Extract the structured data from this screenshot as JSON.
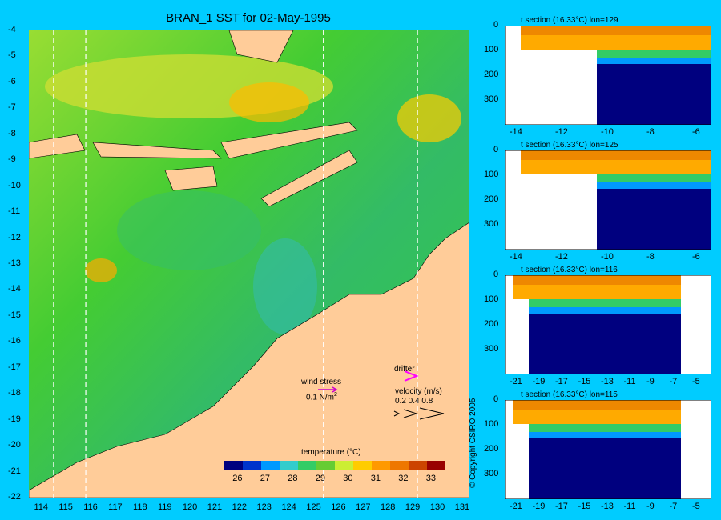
{
  "title": "BRAN_1 SST for 02-May-1995",
  "map": {
    "lat_ticks": [
      "-4",
      "-5",
      "-6",
      "-7",
      "-8",
      "-9",
      "-10",
      "-11",
      "-12",
      "-13",
      "-14",
      "-15",
      "-16",
      "-17",
      "-18",
      "-19",
      "-20",
      "-21",
      "-22"
    ],
    "lon_ticks": [
      "114",
      "115",
      "116",
      "117",
      "118",
      "119",
      "120",
      "121",
      "122",
      "123",
      "124",
      "125",
      "126",
      "127",
      "128",
      "129",
      "130",
      "131"
    ],
    "section_lons": [
      114.5,
      115.8,
      125.4,
      129.2
    ],
    "wind_label": "wind stress",
    "wind_scale": "0.1 N/m",
    "wind_exp": "2",
    "drifter_label": "drifter",
    "velocity_label": "velocity (m/s)",
    "velocity_values": "0.2 0.4 0.8"
  },
  "colorbar": {
    "label": "temperature (°C)",
    "ticks": [
      "26",
      "27",
      "28",
      "29",
      "30",
      "31",
      "32",
      "33"
    ],
    "range": [
      25.5,
      33.5
    ],
    "colors": [
      "#00007f",
      "#0033cc",
      "#0099ff",
      "#33cccc",
      "#33cc66",
      "#66cc33",
      "#ccee33",
      "#ffcc00",
      "#ff9900",
      "#ee7700",
      "#cc4400",
      "#990000"
    ]
  },
  "sections": [
    {
      "title": "t section (16.33°C) lon=129",
      "depth_ticks": [
        "0",
        "100",
        "200",
        "300"
      ],
      "x_ticks": [
        "-14",
        "-12",
        "-10",
        "-8",
        "-6"
      ]
    },
    {
      "title": "t section (16.33°C) lon=125",
      "depth_ticks": [
        "0",
        "100",
        "200",
        "300"
      ],
      "x_ticks": [
        "-14",
        "-12",
        "-10",
        "-8",
        "-6"
      ]
    },
    {
      "title": "t section (16.33°C) lon=116",
      "depth_ticks": [
        "0",
        "100",
        "200",
        "300"
      ],
      "x_ticks": [
        "-21",
        "-19",
        "-17",
        "-15",
        "-13",
        "-11",
        "-9",
        "-7",
        "-5"
      ]
    },
    {
      "title": "t section (16.33°C) lon=115",
      "depth_ticks": [
        "0",
        "100",
        "200",
        "300"
      ],
      "x_ticks": [
        "-21",
        "-19",
        "-17",
        "-15",
        "-13",
        "-11",
        "-9",
        "-7",
        "-5"
      ]
    }
  ],
  "colors": {
    "background": "#00ccff",
    "land": "#ffcc99",
    "ocean_warm": "#33cc33",
    "deep": "#00007f"
  },
  "copyright": "© Copyright CSIRO 2005"
}
